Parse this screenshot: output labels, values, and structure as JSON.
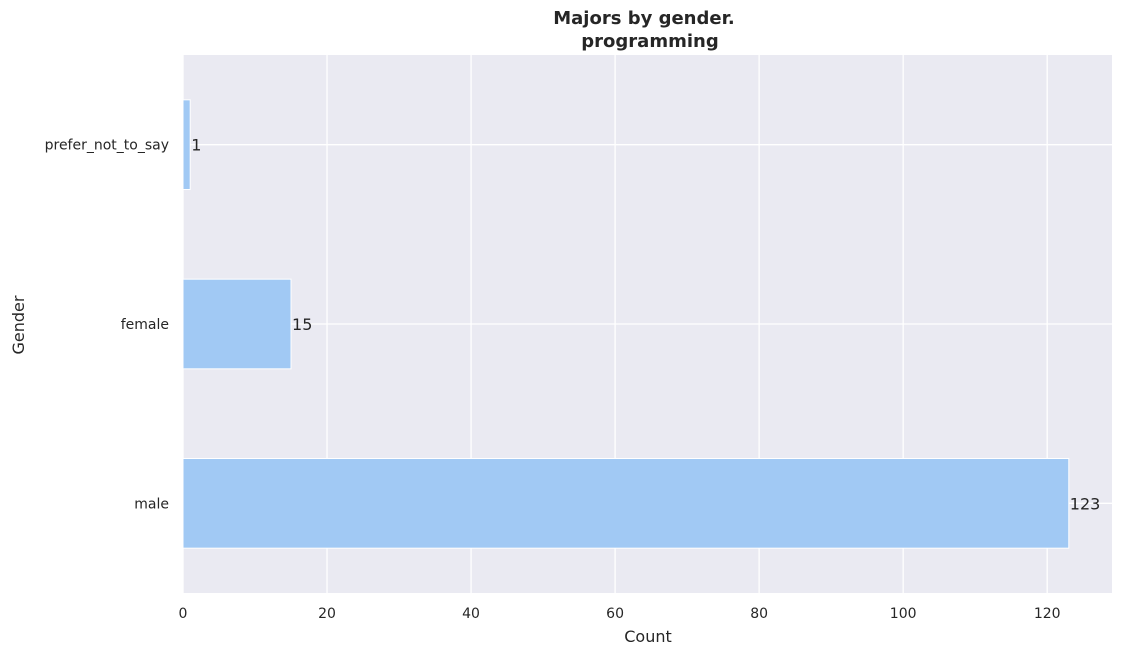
{
  "chart_data": {
    "type": "bar",
    "orientation": "horizontal",
    "title": "Majors by gender.",
    "subtitle": "programming",
    "xlabel": "Count",
    "ylabel": "Gender",
    "categories": [
      "prefer_not_to_say",
      "female",
      "male"
    ],
    "values": [
      1,
      15,
      123
    ],
    "data_labels": [
      "1",
      "15",
      "123"
    ],
    "xlim": [
      0,
      129
    ],
    "xticks": [
      0,
      20,
      40,
      60,
      80,
      100,
      120
    ],
    "xtick_labels": [
      "0",
      "20",
      "40",
      "60",
      "80",
      "100",
      "120"
    ],
    "grid": true,
    "legend": "none",
    "colors": {
      "bar": "#a1c9f4",
      "plot_background": "#eaeaf2",
      "grid": "#ffffff",
      "text": "#262626"
    }
  }
}
